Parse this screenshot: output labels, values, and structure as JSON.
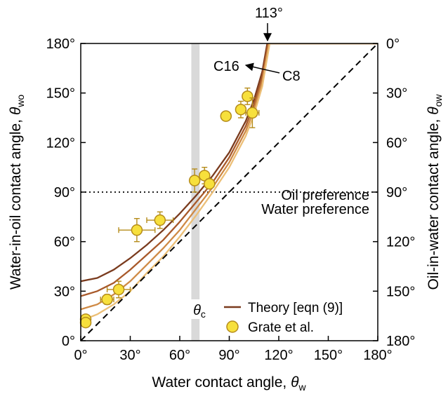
{
  "chart_data": {
    "type": "scatter",
    "xlabel": "Water contact angle, ",
    "xlabel_symbol": "θ",
    "xlabel_sub": "w",
    "ylabel_left": "Water-in-oil contact angle, ",
    "ylabel_left_symbol": "θ",
    "ylabel_left_sub": "wo",
    "ylabel_right": "Oil-in-water contact angle, ",
    "ylabel_right_symbol": "θ",
    "ylabel_right_sub": "ow",
    "xlim": [
      0,
      180
    ],
    "ylim": [
      0,
      180
    ],
    "x_ticks": [
      0,
      30,
      60,
      90,
      120,
      150,
      180
    ],
    "x_tick_labels": [
      "0°",
      "30°",
      "60°",
      "90°",
      "120°",
      "150°",
      "180°"
    ],
    "y_ticks": [
      0,
      30,
      60,
      90,
      120,
      150,
      180
    ],
    "y_tick_labels": [
      "0°",
      "30°",
      "60°",
      "90°",
      "120°",
      "150°",
      "180°"
    ],
    "y_right_tick_labels": [
      "180°",
      "150°",
      "120°",
      "90°",
      "60°",
      "30°",
      "0°"
    ],
    "grid": false,
    "legend_position": "bottom-right",
    "critical_band": {
      "x_range": [
        67,
        72
      ],
      "color": "#d9d9d9",
      "label_symbol": "θ",
      "label_sub": "c"
    },
    "horizontal_line": {
      "y": 90,
      "style": "dotted"
    },
    "region_labels": [
      "Oil preference",
      "Water preference"
    ],
    "annotations": [
      {
        "text": "113°",
        "x": 113,
        "y": 180
      },
      {
        "text": "C16",
        "x": 112,
        "y": 156
      },
      {
        "text": "C8",
        "x": 112,
        "y": 156
      }
    ],
    "series": [
      {
        "name": "Theory [eqn (9)]",
        "kind": "line",
        "color": "#7a3b1e",
        "x": [
          0,
          10,
          20,
          30,
          40,
          50,
          60,
          70,
          80,
          90,
          100,
          105,
          110,
          113,
          180
        ],
        "y": [
          36,
          38,
          43,
          50,
          58,
          67,
          77,
          88,
          100,
          114,
          133,
          146,
          163,
          180,
          180
        ]
      },
      {
        "name": "",
        "kind": "line",
        "color": "#a8592a",
        "x": [
          0,
          10,
          20,
          30,
          40,
          50,
          60,
          70,
          80,
          90,
          100,
          105,
          110,
          113.5,
          180
        ],
        "y": [
          27,
          30,
          35,
          43,
          52,
          61,
          72,
          84,
          96,
          111,
          130,
          143,
          160,
          180,
          180
        ]
      },
      {
        "name": "",
        "kind": "line",
        "color": "#cf8a45",
        "x": [
          0,
          10,
          20,
          30,
          40,
          50,
          60,
          70,
          80,
          90,
          100,
          105,
          110,
          114,
          180
        ],
        "y": [
          19,
          22,
          28,
          36,
          46,
          56,
          67,
          80,
          93,
          108,
          127,
          140,
          157,
          180,
          180
        ]
      },
      {
        "name": "",
        "kind": "line",
        "color": "#ecbf77",
        "x": [
          0,
          10,
          20,
          30,
          40,
          50,
          60,
          70,
          80,
          90,
          100,
          105,
          110,
          114.5,
          180
        ],
        "y": [
          12,
          16,
          22,
          30,
          41,
          51,
          63,
          76,
          90,
          105,
          124,
          137,
          154,
          180,
          180
        ]
      },
      {
        "name": "",
        "kind": "dashed",
        "color": "#000000",
        "x": [
          0,
          180
        ],
        "y": [
          0,
          180
        ]
      },
      {
        "name": "Grate et al.",
        "kind": "points",
        "color": "#f7e03c",
        "edge_color": "#b58c1a",
        "points": [
          {
            "x": 3,
            "y": 13,
            "xerr": 1,
            "yerr": 2
          },
          {
            "x": 3,
            "y": 11,
            "xerr": 1,
            "yerr": 2
          },
          {
            "x": 16,
            "y": 25,
            "xerr": 4,
            "yerr": 3
          },
          {
            "x": 23,
            "y": 31,
            "xerr": 7,
            "yerr": 5
          },
          {
            "x": 34,
            "y": 67,
            "xerr": 11,
            "yerr": 7
          },
          {
            "x": 48,
            "y": 73,
            "xerr": 8,
            "yerr": 5
          },
          {
            "x": 69,
            "y": 97,
            "xerr": 2,
            "yerr": 7
          },
          {
            "x": 75,
            "y": 100,
            "xerr": 2,
            "yerr": 5
          },
          {
            "x": 78,
            "y": 95,
            "xerr": 2,
            "yerr": 3
          },
          {
            "x": 88,
            "y": 136,
            "xerr": 2,
            "yerr": 2
          },
          {
            "x": 97,
            "y": 140,
            "xerr": 2,
            "yerr": 5
          },
          {
            "x": 101,
            "y": 148,
            "xerr": 1,
            "yerr": 5
          },
          {
            "x": 104,
            "y": 138,
            "xerr": 4,
            "yerr": 9
          }
        ]
      }
    ],
    "legend": [
      {
        "label": "Theory [eqn (9)]",
        "marker": "line",
        "color": "#7a3b1e"
      },
      {
        "label": "Grate et al.",
        "marker": "circle",
        "color": "#f7e03c",
        "edge_color": "#b58c1a"
      }
    ]
  }
}
